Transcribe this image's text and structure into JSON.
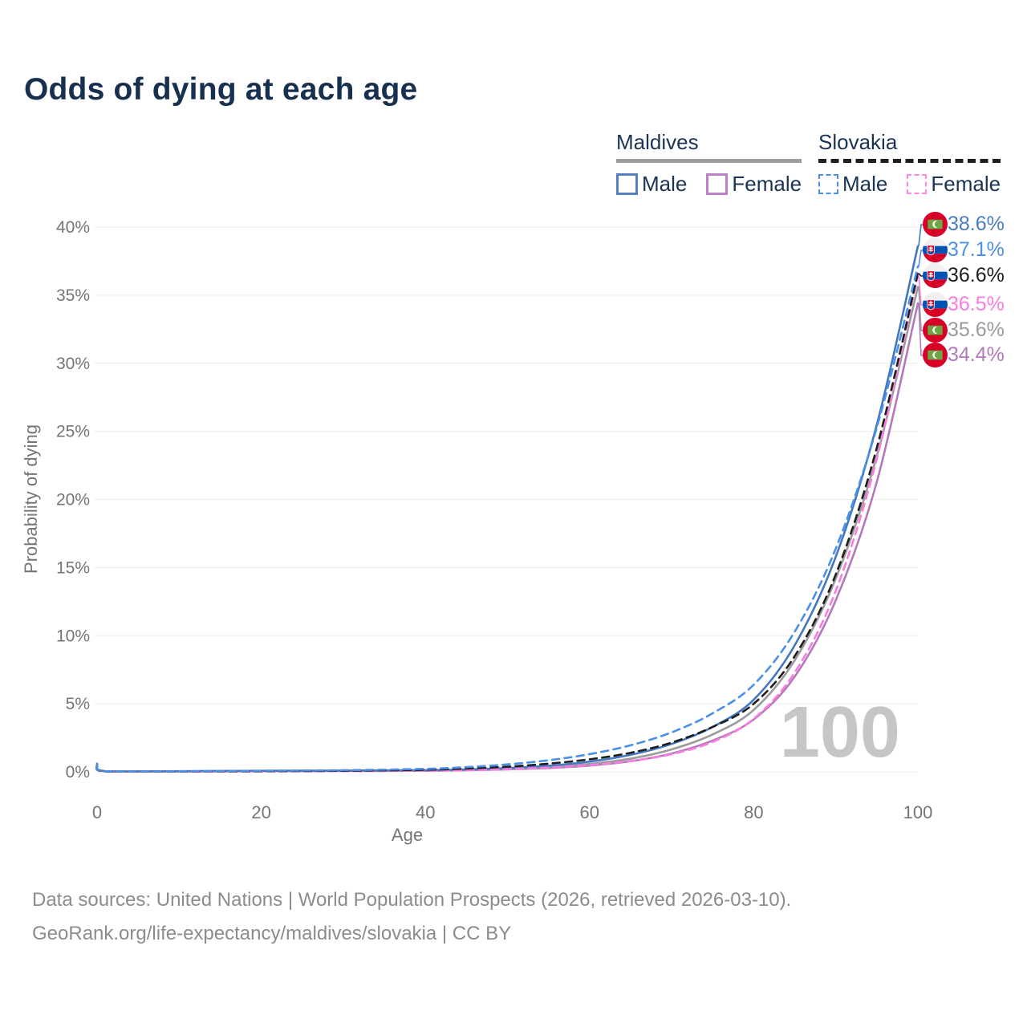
{
  "title": "Odds of dying at each age",
  "legend": {
    "groups": [
      {
        "label": "Maldives",
        "line_style": "solid",
        "line_color": "#9e9e9e",
        "items": [
          {
            "label": "Male",
            "color": "#4477c2",
            "dash": false
          },
          {
            "label": "Female",
            "color": "#b27abc",
            "dash": false
          }
        ]
      },
      {
        "label": "Slovakia",
        "line_style": "dashed",
        "line_color": "#1f1f1f",
        "items": [
          {
            "label": "Male",
            "color": "#4a90e8",
            "dash": true
          },
          {
            "label": "Female",
            "color": "#fb7ce1",
            "dash": true
          }
        ]
      }
    ]
  },
  "chart_data": {
    "type": "line",
    "title": "Odds of dying at each age",
    "xlabel": "Age",
    "ylabel": "Probability of dying",
    "xlim": [
      0,
      100
    ],
    "ylim": [
      0,
      40
    ],
    "x_ticks": [
      0,
      20,
      40,
      60,
      80,
      100
    ],
    "y_ticks": [
      {
        "v": 0,
        "label": "0%"
      },
      {
        "v": 5,
        "label": "5%"
      },
      {
        "v": 10,
        "label": "10%"
      },
      {
        "v": 15,
        "label": "15%"
      },
      {
        "v": 20,
        "label": "20%"
      },
      {
        "v": 25,
        "label": "25%"
      },
      {
        "v": 30,
        "label": "30%"
      },
      {
        "v": 35,
        "label": "35%"
      },
      {
        "v": 40,
        "label": "40%"
      }
    ],
    "grid": true,
    "legend_position": "top-right",
    "hover_age_watermark": "100",
    "ages": [
      0,
      1,
      10,
      20,
      30,
      40,
      45,
      50,
      55,
      60,
      65,
      70,
      75,
      80,
      85,
      90,
      95,
      100
    ],
    "series": [
      {
        "name": "Maldives Male",
        "country": "maldives",
        "sex": "male",
        "color": "#4477c2",
        "dash": false,
        "end_label": "38.6%",
        "end_value": 38.6,
        "label_color": "#4a7dc0",
        "values": [
          0.6,
          0.05,
          0.05,
          0.08,
          0.09,
          0.12,
          0.18,
          0.28,
          0.45,
          0.75,
          1.25,
          2.05,
          3.3,
          5.3,
          9.3,
          15.8,
          25.5,
          38.6
        ]
      },
      {
        "name": "Slovakia Male",
        "country": "slovakia",
        "sex": "male",
        "color": "#4a90e8",
        "dash": true,
        "end_label": "37.1%",
        "end_value": 37.1,
        "label_color": "#4a90e8",
        "values": [
          0.5,
          0.04,
          0.04,
          0.08,
          0.12,
          0.22,
          0.35,
          0.55,
          0.85,
          1.3,
          1.95,
          2.9,
          4.3,
          6.4,
          10.3,
          16.4,
          25.3,
          37.1
        ]
      },
      {
        "name": "Slovakia",
        "country": "slovakia",
        "sex": "both",
        "color": "#1f1f1f",
        "dash": true,
        "end_label": "36.6%",
        "end_value": 36.6,
        "label_color": "#1f1f1f",
        "values": [
          0.45,
          0.03,
          0.03,
          0.05,
          0.08,
          0.15,
          0.24,
          0.38,
          0.6,
          0.92,
          1.4,
          2.15,
          3.3,
          5.0,
          8.5,
          14.5,
          23.8,
          36.6
        ]
      },
      {
        "name": "Slovakia Female",
        "country": "slovakia",
        "sex": "female",
        "color": "#fb7ce1",
        "dash": true,
        "end_label": "36.5%",
        "end_value": 36.5,
        "label_color": "#fb7ce1",
        "values": [
          0.4,
          0.03,
          0.02,
          0.03,
          0.05,
          0.09,
          0.13,
          0.2,
          0.32,
          0.5,
          0.8,
          1.3,
          2.2,
          3.9,
          7.3,
          13.3,
          23.0,
          36.5
        ]
      },
      {
        "name": "Maldives",
        "country": "maldives",
        "sex": "both",
        "color": "#9b9b9b",
        "dash": false,
        "end_label": "35.6%",
        "end_value": 35.6,
        "label_color": "#9b9b9b",
        "values": [
          0.55,
          0.04,
          0.04,
          0.06,
          0.07,
          0.1,
          0.14,
          0.22,
          0.35,
          0.58,
          0.97,
          1.65,
          2.75,
          4.55,
          8.2,
          14.2,
          23.2,
          35.6
        ]
      },
      {
        "name": "Maldives Female",
        "country": "maldives",
        "sex": "female",
        "color": "#b27abc",
        "dash": false,
        "end_label": "34.4%",
        "end_value": 34.4,
        "label_color": "#b27abc",
        "values": [
          0.5,
          0.04,
          0.03,
          0.05,
          0.06,
          0.08,
          0.12,
          0.18,
          0.28,
          0.46,
          0.78,
          1.35,
          2.3,
          3.85,
          7.0,
          12.6,
          21.3,
          34.4
        ]
      }
    ]
  },
  "footer": {
    "line1": "Data sources: United Nations | World Population Prospects (2026, retrieved 2026-03-10).",
    "line2": "GeoRank.org/life-expectancy/maldives/slovakia | CC BY"
  }
}
